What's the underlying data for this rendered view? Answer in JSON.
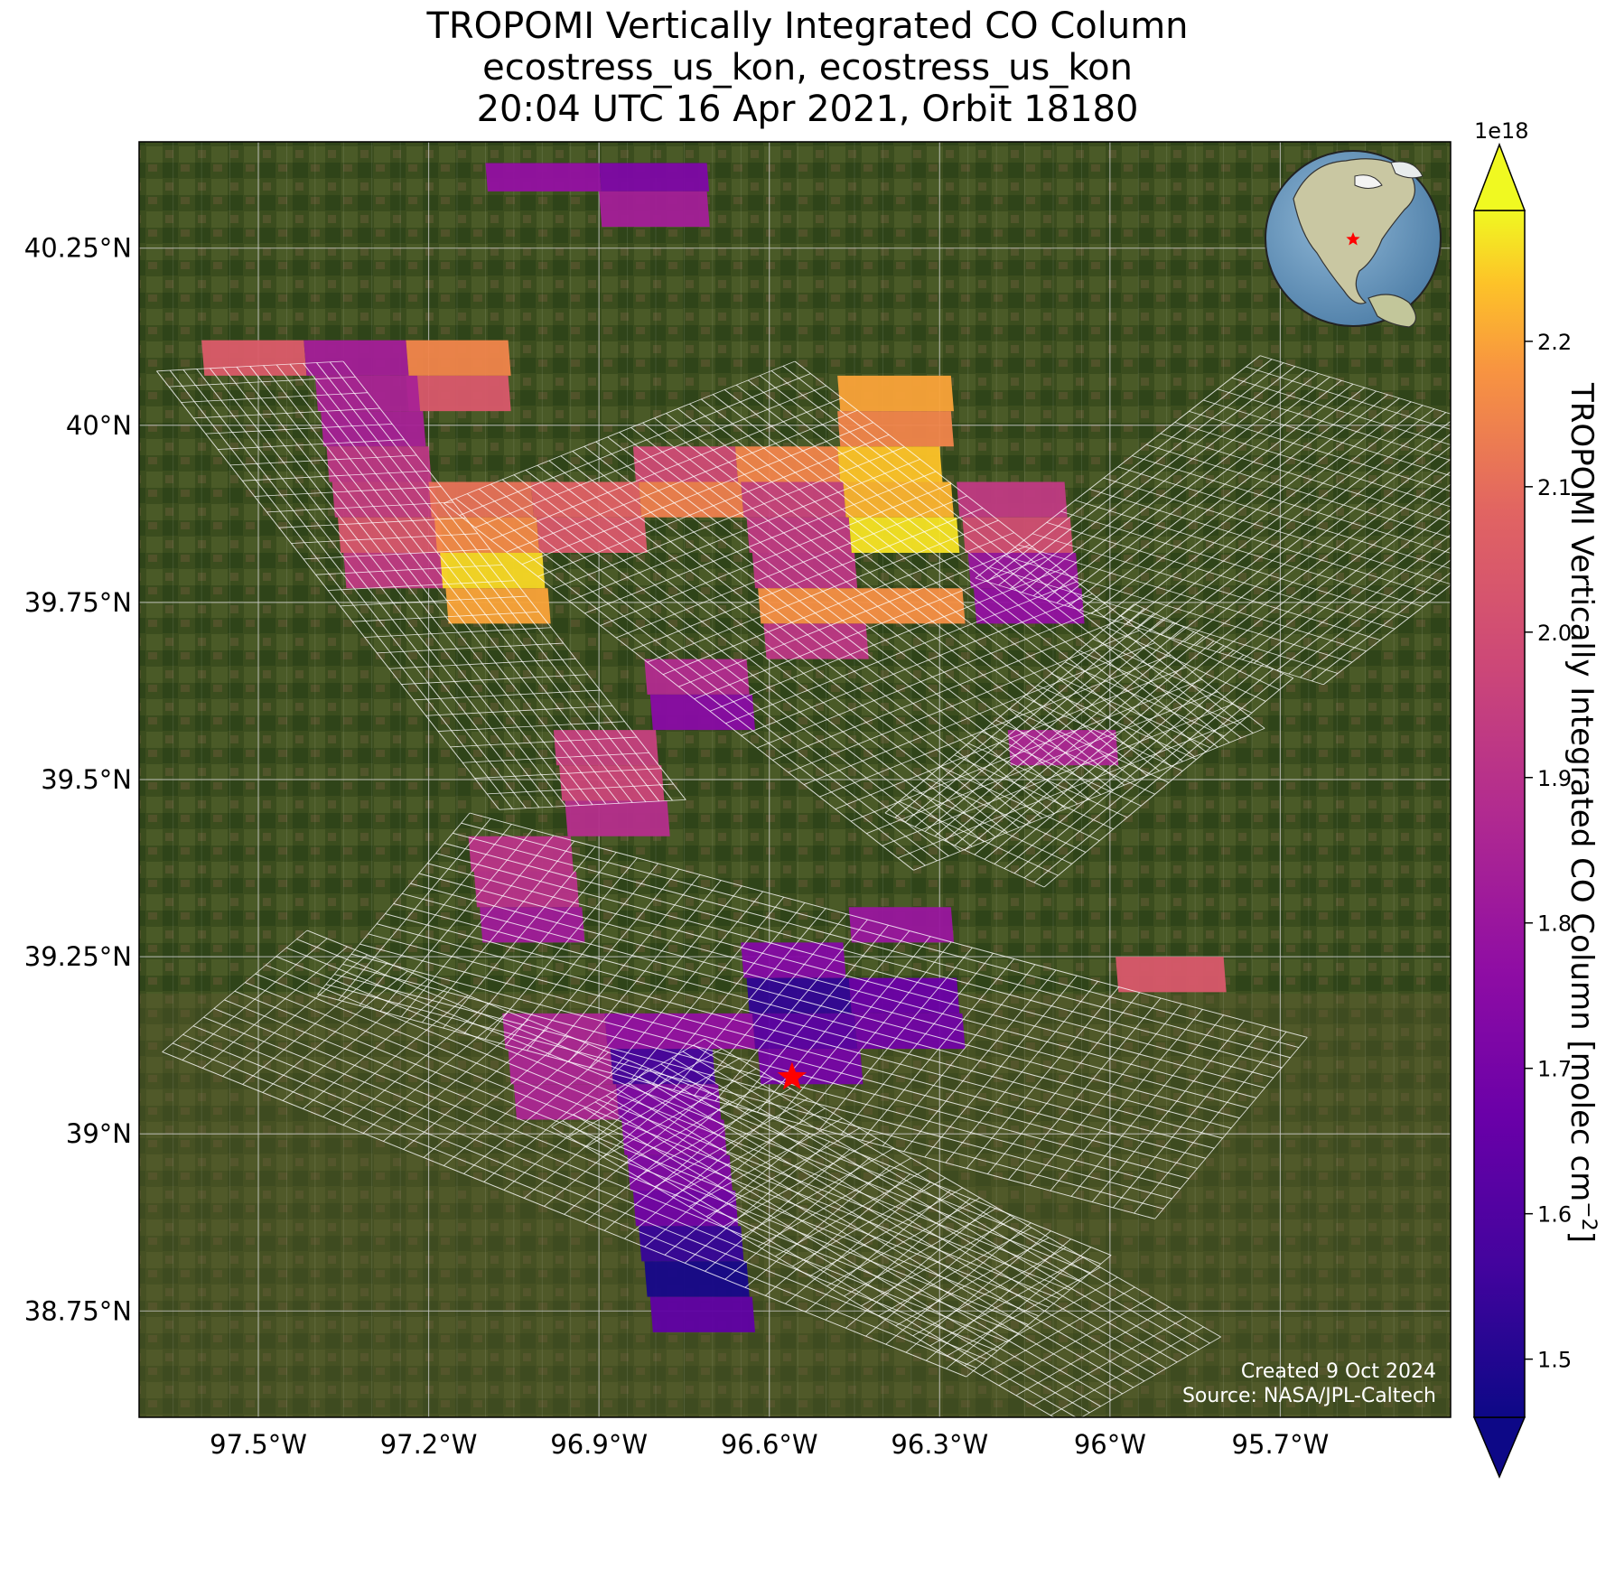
{
  "title": {
    "line1": "TROPOMI Vertically Integrated CO Column",
    "line2": "ecostress_us_kon, ecostress_us_kon",
    "line3": "20:04 UTC 16 Apr 2021, Orbit 18180"
  },
  "map": {
    "lon_range": [
      -97.71,
      -95.4
    ],
    "lat_range": [
      38.6,
      40.4
    ],
    "lon_ticks": [
      {
        "value": -97.5,
        "label": "97.5°W"
      },
      {
        "value": -97.2,
        "label": "97.2°W"
      },
      {
        "value": -96.9,
        "label": "96.9°W"
      },
      {
        "value": -96.6,
        "label": "96.6°W"
      },
      {
        "value": -96.3,
        "label": "96.3°W"
      },
      {
        "value": -96.0,
        "label": "96°W"
      },
      {
        "value": -95.7,
        "label": "95.7°W"
      }
    ],
    "lat_ticks": [
      {
        "value": 40.25,
        "label": "40.25°N"
      },
      {
        "value": 40.0,
        "label": "40°N"
      },
      {
        "value": 39.75,
        "label": "39.75°N"
      },
      {
        "value": 39.5,
        "label": "39.5°N"
      },
      {
        "value": 39.25,
        "label": "39.25°N"
      },
      {
        "value": 39.0,
        "label": "39°N"
      },
      {
        "value": 38.75,
        "label": "38.75°N"
      }
    ],
    "site_marker": {
      "lon": -96.56,
      "lat": 39.08,
      "color": "#ff0000"
    },
    "background": "satellite imagery",
    "credit_line1": "Created 9 Oct 2024",
    "credit_line2": "Source: NASA/JPL-Caltech",
    "inset_globe": "globe-icon"
  },
  "colorbar": {
    "label": "TROPOMI Vertically Integrated CO Column [molec cm",
    "label_sup": "−2",
    "label_end": "]",
    "exponent": "1e18",
    "vmin": 1.46,
    "vmax": 2.29,
    "ticks": [
      {
        "value": 1.5,
        "label": "1.5"
      },
      {
        "value": 1.6,
        "label": "1.6"
      },
      {
        "value": 1.7,
        "label": "1.7"
      },
      {
        "value": 1.8,
        "label": "1.8"
      },
      {
        "value": 1.9,
        "label": "1.9"
      },
      {
        "value": 2.0,
        "label": "2.0"
      },
      {
        "value": 2.1,
        "label": "2.1"
      },
      {
        "value": 2.2,
        "label": "2.2"
      }
    ],
    "colormap": "plasma"
  },
  "chart_data": {
    "type": "heatmap",
    "units": "molec cm^-2 (x1e18)",
    "pixels": [
      {
        "lon0": -97.1,
        "lat0": 40.33,
        "lon1": -96.9,
        "lat1": 40.37,
        "value": 1.78
      },
      {
        "lon0": -96.9,
        "lat0": 40.33,
        "lon1": -96.71,
        "lat1": 40.37,
        "value": 1.72
      },
      {
        "lon0": -96.9,
        "lat0": 40.28,
        "lon1": -96.71,
        "lat1": 40.33,
        "value": 1.83
      },
      {
        "lon0": -97.6,
        "lat0": 40.07,
        "lon1": -97.42,
        "lat1": 40.12,
        "value": 2.05
      },
      {
        "lon0": -97.42,
        "lat0": 40.07,
        "lon1": -97.24,
        "lat1": 40.12,
        "value": 1.83
      },
      {
        "lon0": -97.24,
        "lat0": 40.07,
        "lon1": -97.06,
        "lat1": 40.12,
        "value": 2.15
      },
      {
        "lon0": -97.24,
        "lat0": 40.02,
        "lon1": -97.06,
        "lat1": 40.07,
        "value": 2.04
      },
      {
        "lon0": -97.4,
        "lat0": 40.02,
        "lon1": -97.22,
        "lat1": 40.07,
        "value": 1.85
      },
      {
        "lon0": -97.39,
        "lat0": 39.97,
        "lon1": -97.21,
        "lat1": 40.02,
        "value": 1.84
      },
      {
        "lon0": -97.38,
        "lat0": 39.92,
        "lon1": -97.2,
        "lat1": 39.97,
        "value": 1.92
      },
      {
        "lon0": -97.37,
        "lat0": 39.87,
        "lon1": -97.19,
        "lat1": 39.92,
        "value": 1.94
      },
      {
        "lon0": -97.36,
        "lat0": 39.82,
        "lon1": -97.18,
        "lat1": 39.87,
        "value": 2.03
      },
      {
        "lon0": -97.35,
        "lat0": 39.77,
        "lon1": -97.17,
        "lat1": 39.82,
        "value": 1.93
      },
      {
        "lon0": -97.2,
        "lat0": 39.87,
        "lon1": -97.02,
        "lat1": 39.92,
        "value": 2.11
      },
      {
        "lon0": -97.02,
        "lat0": 39.87,
        "lon1": -96.83,
        "lat1": 39.92,
        "value": 2.07
      },
      {
        "lon0": -97.19,
        "lat0": 39.82,
        "lon1": -97.01,
        "lat1": 39.87,
        "value": 2.16
      },
      {
        "lon0": -97.01,
        "lat0": 39.82,
        "lon1": -96.82,
        "lat1": 39.87,
        "value": 2.04
      },
      {
        "lon0": -97.18,
        "lat0": 39.77,
        "lon1": -97.0,
        "lat1": 39.82,
        "value": 2.26
      },
      {
        "lon0": -97.17,
        "lat0": 39.72,
        "lon1": -96.99,
        "lat1": 39.77,
        "value": 2.2
      },
      {
        "lon0": -96.84,
        "lat0": 39.92,
        "lon1": -96.66,
        "lat1": 39.97,
        "value": 1.99
      },
      {
        "lon0": -96.66,
        "lat0": 39.92,
        "lon1": -96.48,
        "lat1": 39.97,
        "value": 2.15
      },
      {
        "lon0": -96.48,
        "lat0": 39.92,
        "lon1": -96.3,
        "lat1": 39.97,
        "value": 2.24
      },
      {
        "lon0": -96.48,
        "lat0": 40.02,
        "lon1": -96.28,
        "lat1": 40.07,
        "value": 2.2
      },
      {
        "lon0": -96.48,
        "lat0": 39.97,
        "lon1": -96.28,
        "lat1": 40.02,
        "value": 2.15
      },
      {
        "lon0": -96.83,
        "lat0": 39.87,
        "lon1": -96.65,
        "lat1": 39.92,
        "value": 2.14
      },
      {
        "lon0": -96.65,
        "lat0": 39.87,
        "lon1": -96.47,
        "lat1": 39.92,
        "value": 1.96
      },
      {
        "lon0": -96.47,
        "lat0": 39.87,
        "lon1": -96.28,
        "lat1": 39.92,
        "value": 2.22
      },
      {
        "lon0": -96.64,
        "lat0": 39.82,
        "lon1": -96.46,
        "lat1": 39.87,
        "value": 1.93
      },
      {
        "lon0": -96.46,
        "lat0": 39.82,
        "lon1": -96.27,
        "lat1": 39.87,
        "value": 2.27
      },
      {
        "lon0": -96.63,
        "lat0": 39.77,
        "lon1": -96.45,
        "lat1": 39.82,
        "value": 1.92
      },
      {
        "lon0": -96.27,
        "lat0": 39.87,
        "lon1": -96.08,
        "lat1": 39.92,
        "value": 1.93
      },
      {
        "lon0": -96.26,
        "lat0": 39.82,
        "lon1": -96.07,
        "lat1": 39.87,
        "value": 2.0
      },
      {
        "lon0": -96.25,
        "lat0": 39.77,
        "lon1": -96.06,
        "lat1": 39.82,
        "value": 1.8
      },
      {
        "lon0": -96.24,
        "lat0": 39.72,
        "lon1": -96.05,
        "lat1": 39.77,
        "value": 1.78
      },
      {
        "lon0": -96.62,
        "lat0": 39.72,
        "lon1": -96.26,
        "lat1": 39.77,
        "value": 2.17
      },
      {
        "lon0": -96.61,
        "lat0": 39.67,
        "lon1": -96.43,
        "lat1": 39.72,
        "value": 1.92
      },
      {
        "lon0": -96.82,
        "lat0": 39.62,
        "lon1": -96.64,
        "lat1": 39.67,
        "value": 1.88
      },
      {
        "lon0": -96.81,
        "lat0": 39.57,
        "lon1": -96.63,
        "lat1": 39.62,
        "value": 1.75
      },
      {
        "lon0": -96.98,
        "lat0": 39.52,
        "lon1": -96.8,
        "lat1": 39.57,
        "value": 1.95
      },
      {
        "lon0": -96.97,
        "lat0": 39.47,
        "lon1": -96.79,
        "lat1": 39.52,
        "value": 1.97
      },
      {
        "lon0": -96.96,
        "lat0": 39.42,
        "lon1": -96.78,
        "lat1": 39.47,
        "value": 1.89
      },
      {
        "lon0": -96.18,
        "lat0": 39.52,
        "lon1": -95.99,
        "lat1": 39.57,
        "value": 1.86
      },
      {
        "lon0": -97.13,
        "lat0": 39.37,
        "lon1": -96.95,
        "lat1": 39.42,
        "value": 1.91
      },
      {
        "lon0": -97.12,
        "lat0": 39.32,
        "lon1": -96.94,
        "lat1": 39.37,
        "value": 1.9
      },
      {
        "lon0": -97.11,
        "lat0": 39.27,
        "lon1": -96.93,
        "lat1": 39.32,
        "value": 1.82
      },
      {
        "lon0": -96.46,
        "lat0": 39.27,
        "lon1": -96.28,
        "lat1": 39.32,
        "value": 1.8
      },
      {
        "lon0": -96.65,
        "lat0": 39.22,
        "lon1": -96.47,
        "lat1": 39.27,
        "value": 1.74
      },
      {
        "lon0": -96.64,
        "lat0": 39.17,
        "lon1": -96.46,
        "lat1": 39.22,
        "value": 1.53
      },
      {
        "lon0": -96.46,
        "lat0": 39.17,
        "lon1": -96.27,
        "lat1": 39.22,
        "value": 1.67
      },
      {
        "lon0": -96.45,
        "lat0": 39.12,
        "lon1": -96.26,
        "lat1": 39.17,
        "value": 1.69
      },
      {
        "lon0": -96.63,
        "lat0": 39.12,
        "lon1": -96.45,
        "lat1": 39.17,
        "value": 1.63
      },
      {
        "lon0": -95.99,
        "lat0": 39.2,
        "lon1": -95.8,
        "lat1": 39.25,
        "value": 2.04
      },
      {
        "lon0": -97.07,
        "lat0": 39.12,
        "lon1": -96.89,
        "lat1": 39.17,
        "value": 1.86
      },
      {
        "lon0": -96.89,
        "lat0": 39.12,
        "lon1": -96.63,
        "lat1": 39.17,
        "value": 1.78
      },
      {
        "lon0": -97.06,
        "lat0": 39.07,
        "lon1": -96.88,
        "lat1": 39.12,
        "value": 1.86
      },
      {
        "lon0": -96.88,
        "lat0": 39.07,
        "lon1": -96.7,
        "lat1": 39.12,
        "value": 1.58
      },
      {
        "lon0": -96.62,
        "lat0": 39.07,
        "lon1": -96.44,
        "lat1": 39.12,
        "value": 1.7
      },
      {
        "lon0": -97.05,
        "lat0": 39.02,
        "lon1": -96.87,
        "lat1": 39.07,
        "value": 1.86
      },
      {
        "lon0": -96.87,
        "lat0": 39.02,
        "lon1": -96.69,
        "lat1": 39.07,
        "value": 1.73
      },
      {
        "lon0": -96.86,
        "lat0": 38.97,
        "lon1": -96.68,
        "lat1": 39.02,
        "value": 1.75
      },
      {
        "lon0": -96.85,
        "lat0": 38.92,
        "lon1": -96.67,
        "lat1": 38.97,
        "value": 1.73
      },
      {
        "lon0": -96.84,
        "lat0": 38.87,
        "lon1": -96.66,
        "lat1": 38.92,
        "value": 1.69
      },
      {
        "lon0": -96.83,
        "lat0": 38.82,
        "lon1": -96.65,
        "lat1": 38.87,
        "value": 1.54
      },
      {
        "lon0": -96.82,
        "lat0": 38.77,
        "lon1": -96.64,
        "lat1": 38.82,
        "value": 1.48
      },
      {
        "lon0": -96.81,
        "lat0": 38.72,
        "lon1": -96.63,
        "lat1": 38.77,
        "value": 1.64
      }
    ]
  }
}
